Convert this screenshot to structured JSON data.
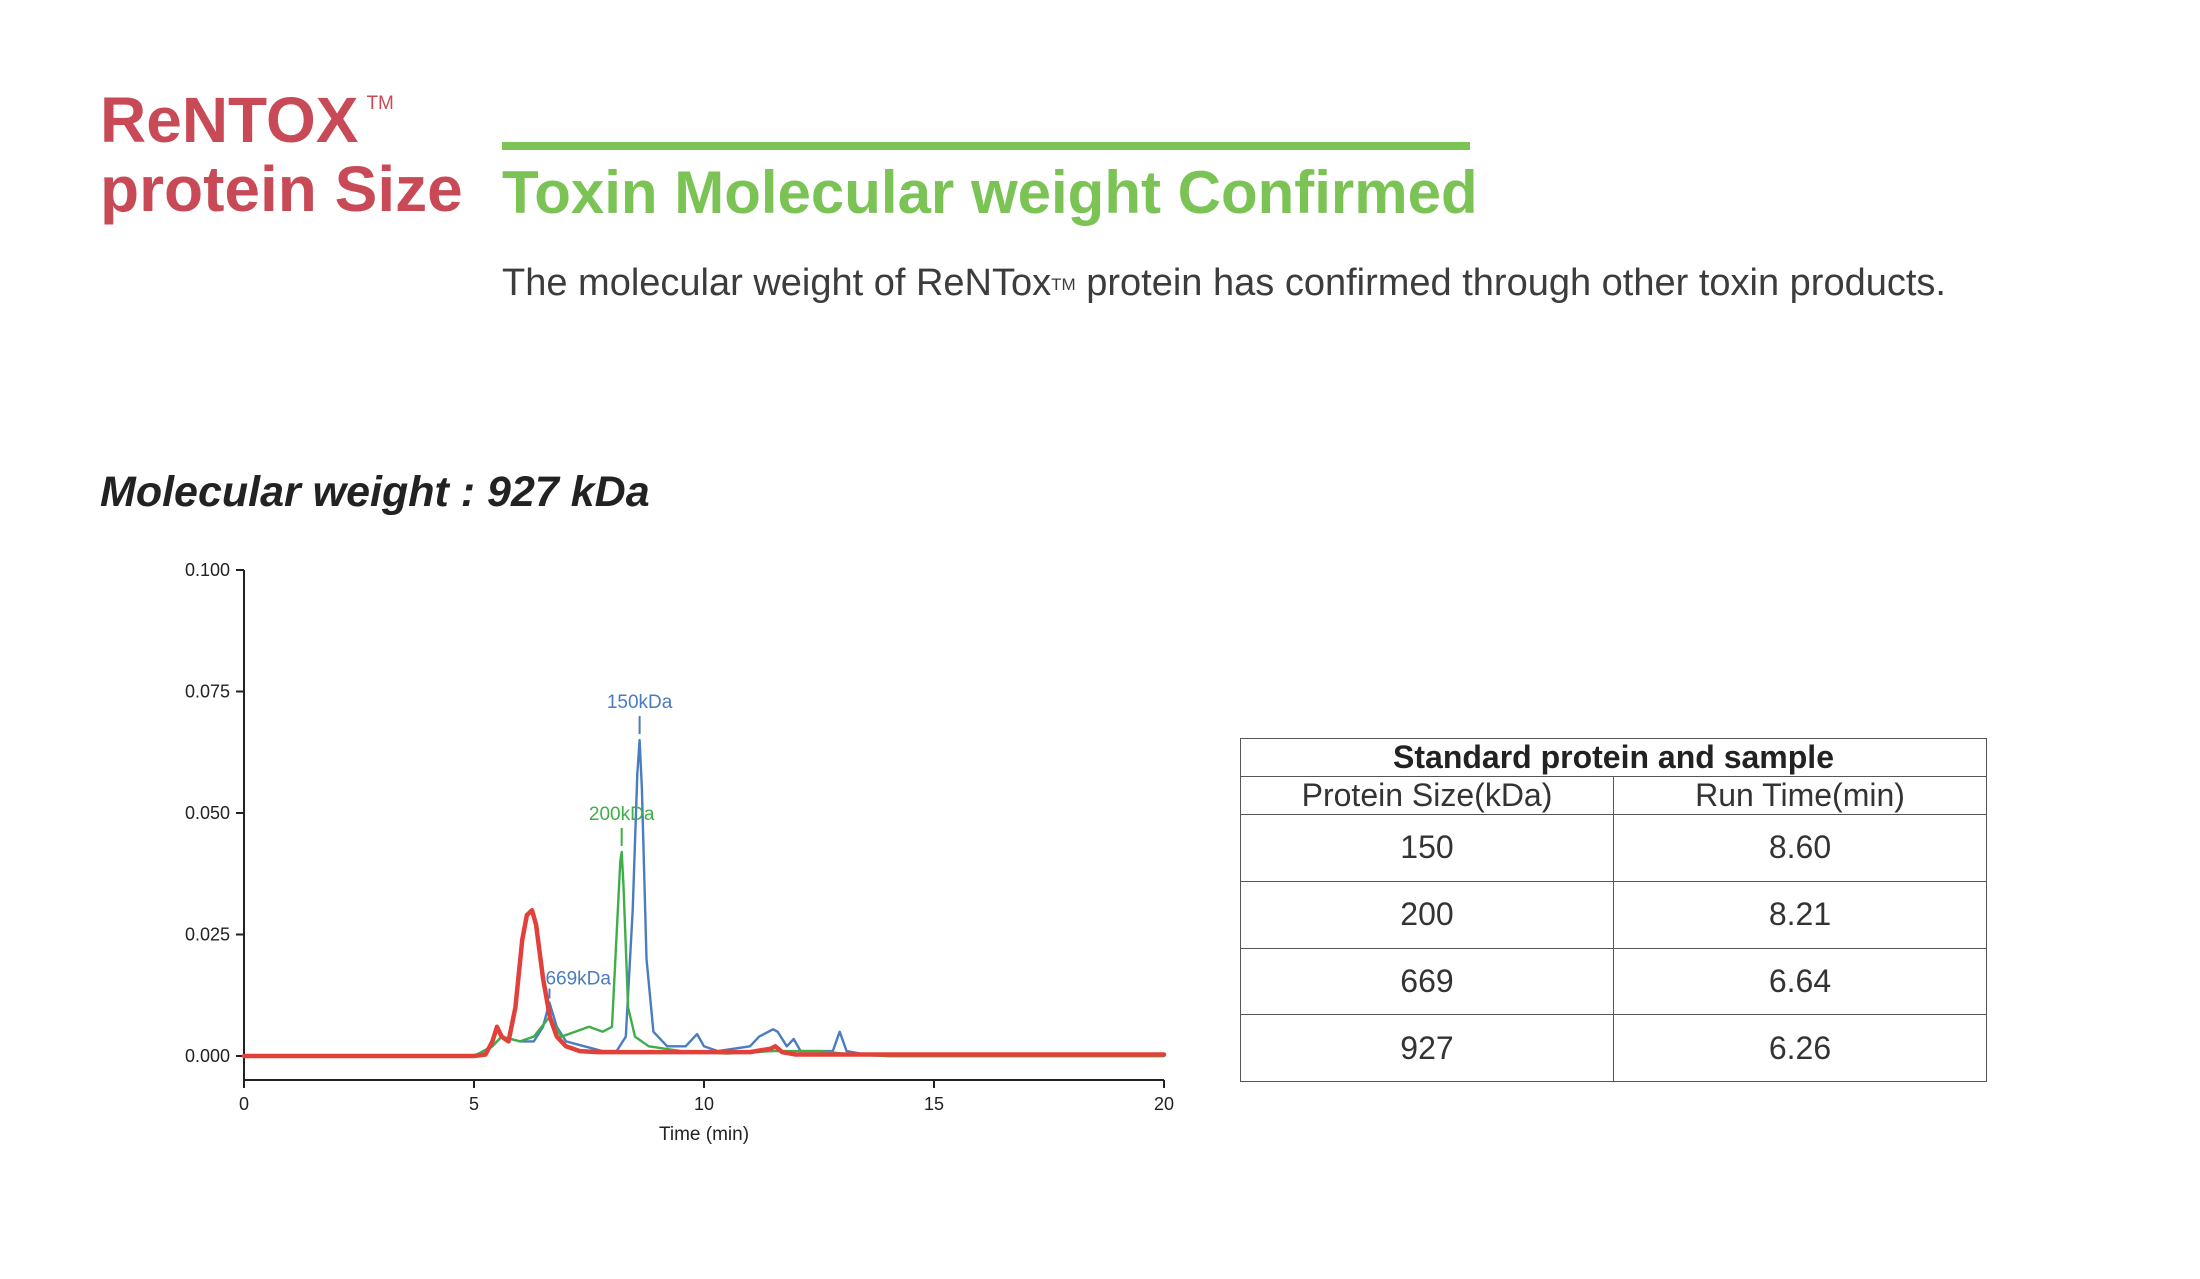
{
  "brand": {
    "line1": "ReNTOX",
    "tm": "TM",
    "line2": "protein Size",
    "color": "#c94a57"
  },
  "headline": {
    "text": "Toxin Molecular weight Confirmed",
    "color": "#7cc355"
  },
  "subtitle": {
    "before": "The molecular weight of ReNTox",
    "tm": "TM",
    "after": " protein has confirmed through other toxin products."
  },
  "mw_heading": "Molecular weight : 927 kDa",
  "chart_data": {
    "type": "line",
    "xlabel": "Time (min)",
    "ylabel": "",
    "xlim": [
      0,
      20
    ],
    "ylim": [
      0,
      0.1
    ],
    "x_ticks": [
      "0",
      "5",
      "10",
      "15",
      "20"
    ],
    "y_ticks": [
      "0.000",
      "0.025",
      "0.050",
      "0.075",
      "0.100"
    ],
    "grid": false,
    "annotations": [
      {
        "text": "150kDa",
        "x": 8.6,
        "y": 0.065,
        "color": "#4a7cc0"
      },
      {
        "text": "200kDa",
        "x": 8.21,
        "y": 0.042,
        "color": "#3fae49"
      },
      {
        "text": "669kDa",
        "x": 6.64,
        "y": 0.011,
        "color": "#4a7cc0"
      }
    ],
    "series": [
      {
        "color": "#4a7cc0",
        "x": [
          0,
          5,
          5.4,
          5.6,
          6.0,
          6.3,
          6.5,
          6.64,
          6.8,
          7.0,
          7.4,
          7.8,
          8.1,
          8.3,
          8.45,
          8.55,
          8.6,
          8.65,
          8.75,
          8.9,
          9.2,
          9.6,
          9.85,
          10.0,
          10.3,
          11.0,
          11.2,
          11.5,
          11.6,
          11.8,
          11.95,
          12.1,
          12.4,
          12.8,
          12.95,
          13.1,
          13.4,
          14,
          20
        ],
        "y": [
          0,
          0,
          0.002,
          0.004,
          0.003,
          0.003,
          0.006,
          0.011,
          0.006,
          0.003,
          0.002,
          0.001,
          0.001,
          0.004,
          0.03,
          0.058,
          0.065,
          0.055,
          0.02,
          0.005,
          0.002,
          0.002,
          0.0045,
          0.002,
          0.001,
          0.002,
          0.004,
          0.0055,
          0.005,
          0.002,
          0.0035,
          0.001,
          0.001,
          0.001,
          0.005,
          0.001,
          0.0005,
          0,
          0
        ]
      },
      {
        "color": "#3fae49",
        "x": [
          0,
          5,
          5.4,
          5.6,
          6.0,
          6.3,
          6.64,
          6.9,
          7.2,
          7.5,
          7.8,
          8.0,
          8.1,
          8.18,
          8.21,
          8.25,
          8.35,
          8.5,
          8.8,
          9.5,
          10.5,
          11.5,
          12.5,
          13.2,
          14,
          20
        ],
        "y": [
          0,
          0,
          0.002,
          0.004,
          0.003,
          0.004,
          0.008,
          0.004,
          0.005,
          0.006,
          0.005,
          0.006,
          0.025,
          0.04,
          0.042,
          0.035,
          0.01,
          0.004,
          0.002,
          0.001,
          0.0005,
          0.001,
          0.001,
          0.0003,
          0,
          0
        ]
      },
      {
        "color": "#e2403a",
        "x": [
          0,
          5,
          5.25,
          5.4,
          5.5,
          5.6,
          5.75,
          5.9,
          6.05,
          6.15,
          6.26,
          6.35,
          6.5,
          6.65,
          6.8,
          7.0,
          7.3,
          7.7,
          8.2,
          9,
          10,
          11,
          11.45,
          11.55,
          11.7,
          12,
          20
        ],
        "y": [
          0,
          0,
          0.0003,
          0.003,
          0.006,
          0.004,
          0.003,
          0.01,
          0.024,
          0.029,
          0.03,
          0.027,
          0.016,
          0.008,
          0.004,
          0.002,
          0.001,
          0.0008,
          0.0008,
          0.0008,
          0.0008,
          0.0008,
          0.0015,
          0.002,
          0.0008,
          0.0003,
          0.0003
        ]
      }
    ]
  },
  "table": {
    "caption": "Standard protein and sample",
    "headers": [
      "Protein Size(kDa)",
      "Run Time(min)"
    ],
    "rows": [
      [
        "150",
        "8.60"
      ],
      [
        "200",
        "8.21"
      ],
      [
        "669",
        "6.64"
      ],
      [
        "927",
        "6.26"
      ]
    ]
  }
}
